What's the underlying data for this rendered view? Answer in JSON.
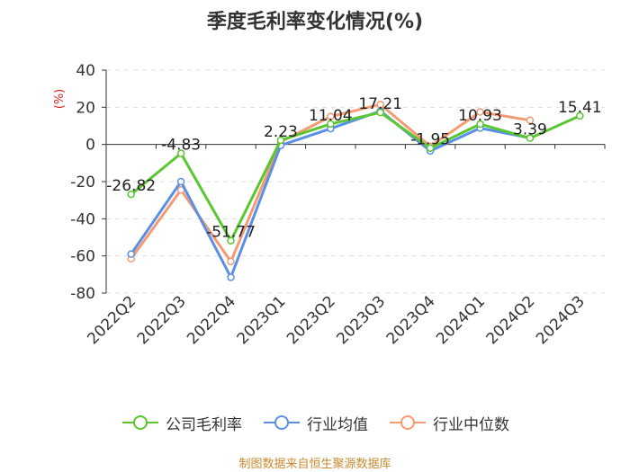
{
  "chart_data": {
    "type": "line",
    "title": "季度毛利率变化情况(%)",
    "ylabel": "(%)",
    "xlabel": "",
    "ylim": [
      -80,
      40
    ],
    "yticks": [
      40,
      20,
      0,
      -20,
      -40,
      -60,
      -80
    ],
    "categories": [
      "2022Q2",
      "2022Q3",
      "2022Q4",
      "2023Q1",
      "2023Q2",
      "2023Q3",
      "2023Q4",
      "2024Q1",
      "2024Q2",
      "2024Q3"
    ],
    "grid": true,
    "legend_position": "bottom",
    "series": [
      {
        "name": "公司毛利率",
        "color": "#5ac630",
        "values": [
          -26.82,
          -4.83,
          -51.77,
          2.23,
          11.04,
          17.21,
          -1.95,
          10.93,
          3.39,
          15.41
        ],
        "labels": [
          "-26.82",
          "-4.83",
          "-51.77",
          "2.23",
          "11.04",
          "17.21",
          "-1.95",
          "10.93",
          "3.39",
          "15.41"
        ]
      },
      {
        "name": "行业均值",
        "color": "#5b8fe6",
        "values": [
          -59,
          -20,
          -71.5,
          -0.5,
          8.5,
          18,
          -3.5,
          8.8,
          3.5,
          null
        ]
      },
      {
        "name": "行业中位数",
        "color": "#f59a73",
        "values": [
          -61.5,
          -24.5,
          -63,
          1.5,
          15,
          21.5,
          -1,
          17.5,
          13,
          null
        ]
      }
    ]
  },
  "source_text": "制图数据来自恒生聚源数据库"
}
